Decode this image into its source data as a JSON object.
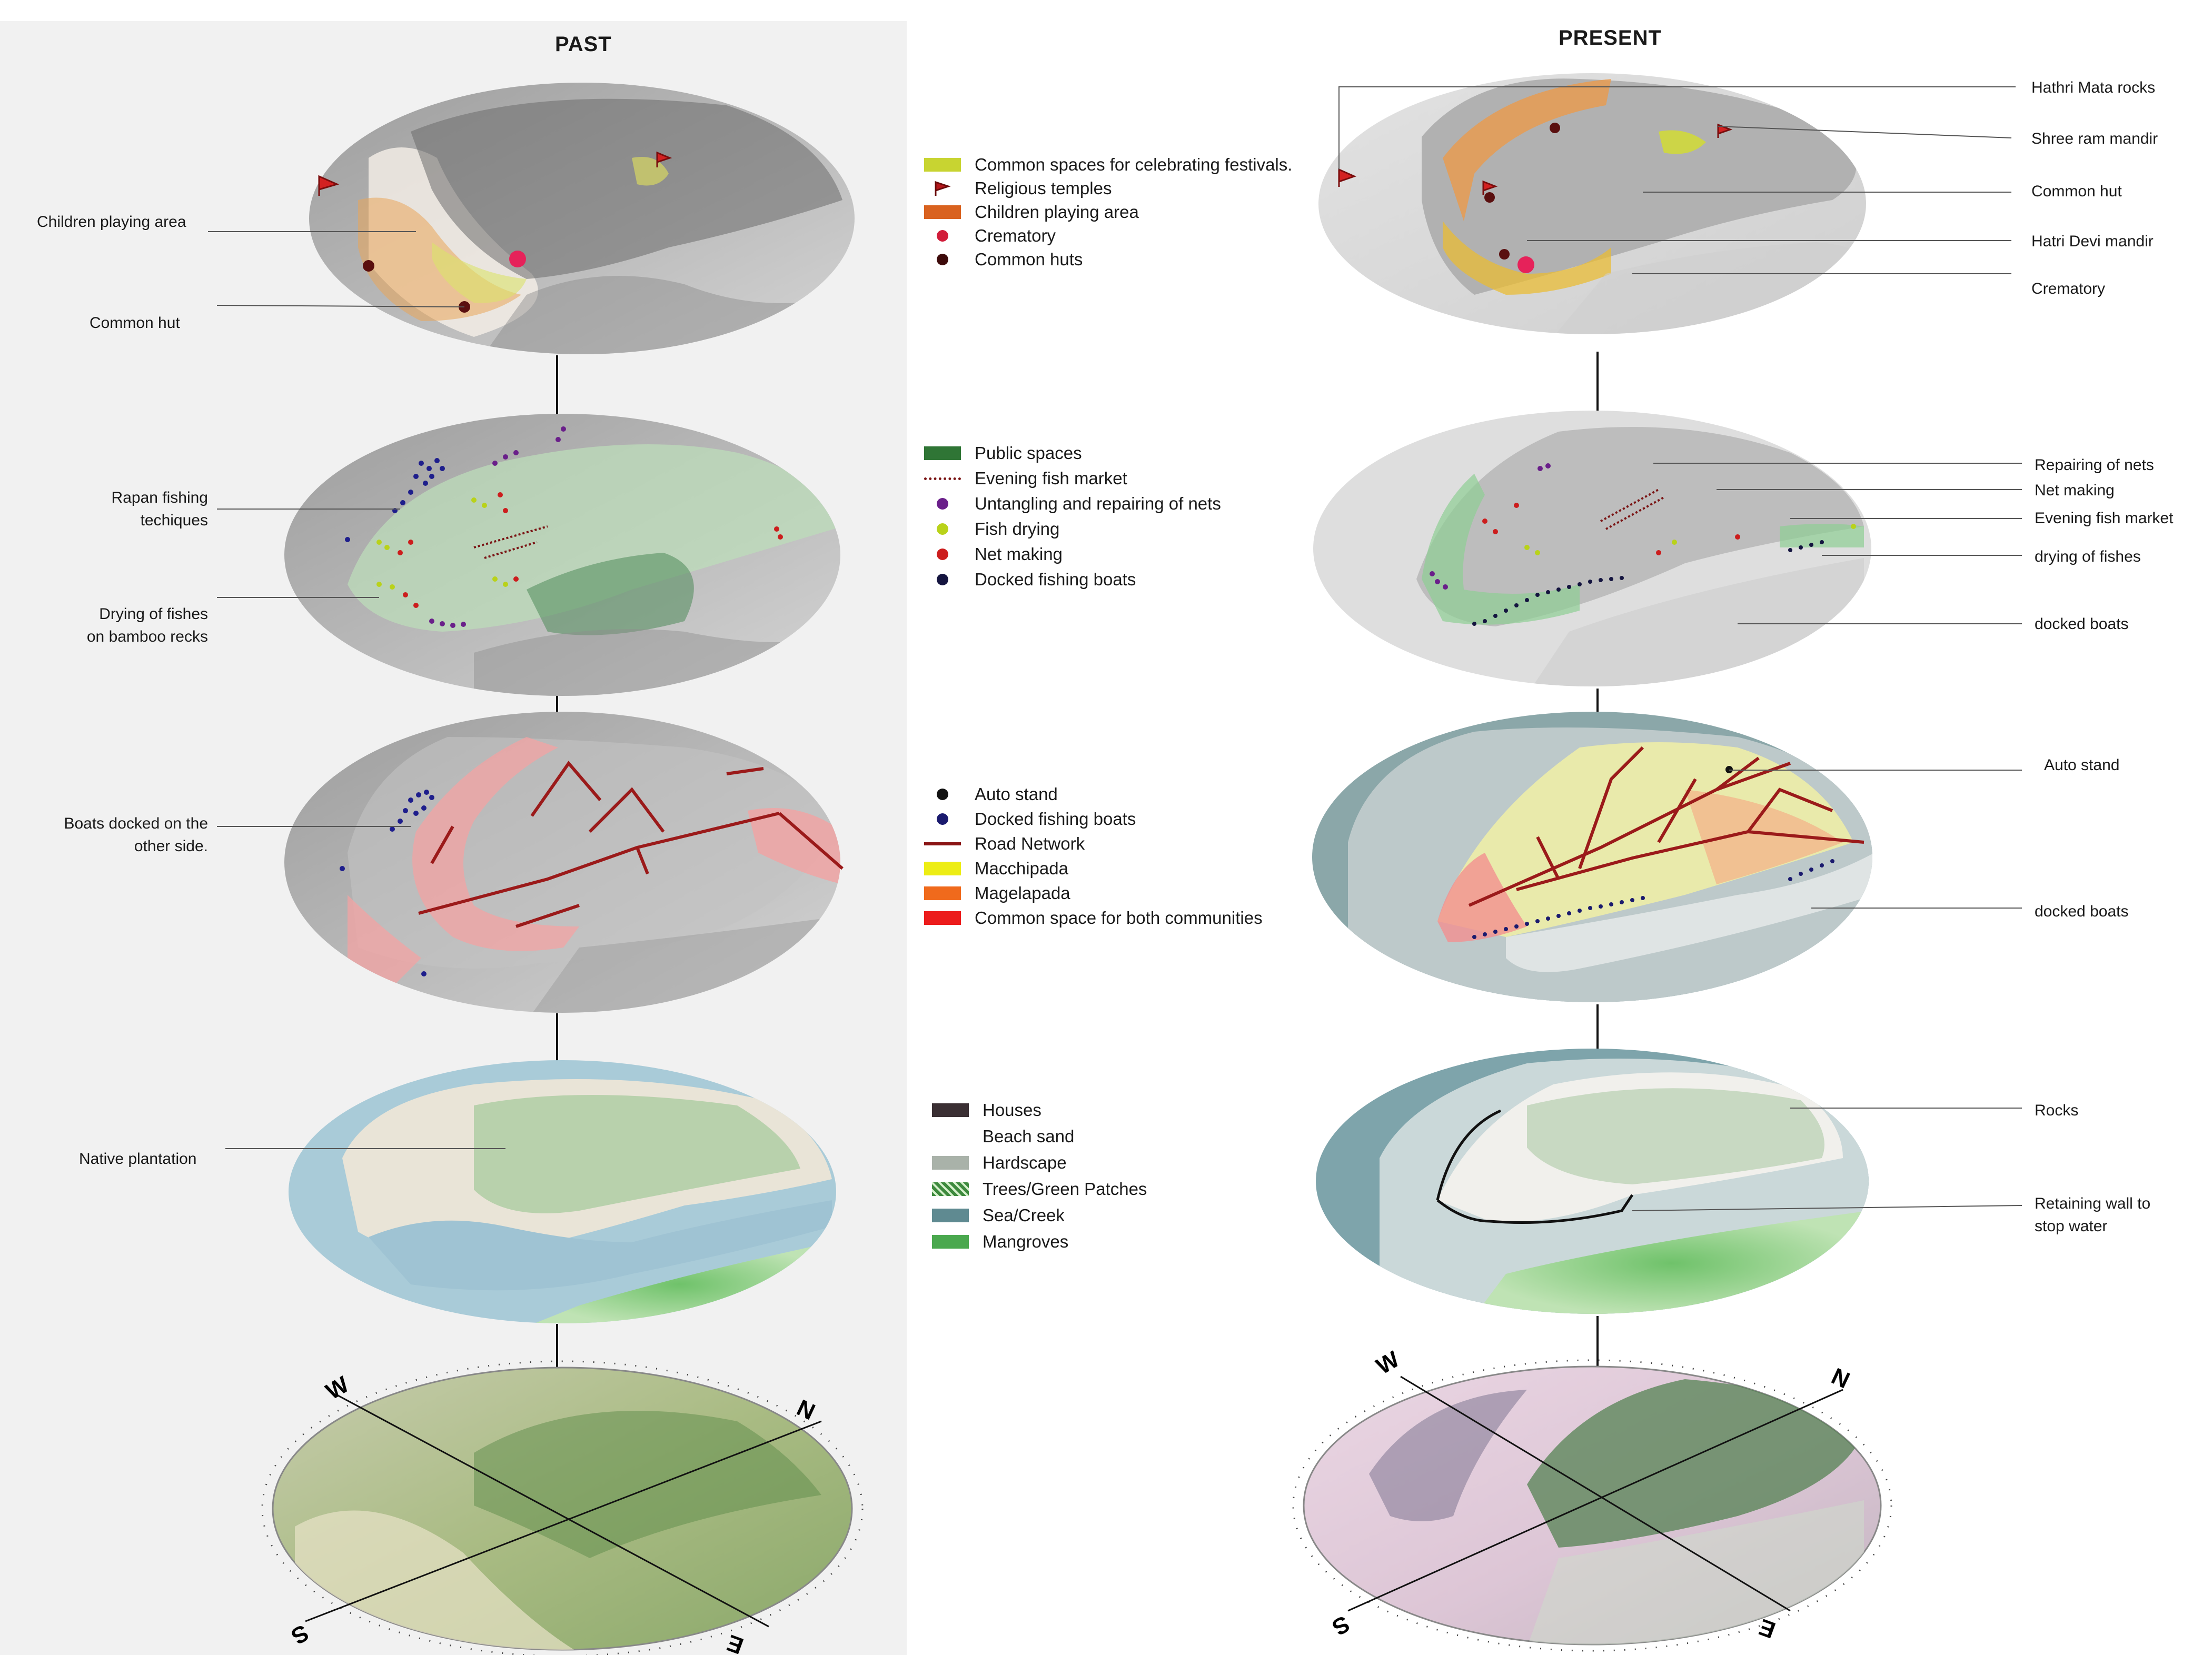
{
  "titles": {
    "past": "PAST",
    "present": "PRESENT"
  },
  "past": {
    "layer1": {
      "children_playing_area": "Children playing area",
      "common_hut": "Common hut"
    },
    "layer2": {
      "rapan_line1": "Rapan fishing",
      "rapan_line2": "techiques",
      "drying_line1": "Drying of fishes",
      "drying_line2": "on bamboo recks"
    },
    "layer3": {
      "boats_line1": "Boats docked on the",
      "boats_line2": "other side."
    },
    "layer4": {
      "native_plantation": "Native plantation"
    }
  },
  "present": {
    "layer1": {
      "hathri_mata_rocks": "Hathri Mata rocks",
      "shree_ram_mandir": "Shree ram mandir",
      "common_hut": "Common hut",
      "hatri_devi_mandir": "Hatri Devi mandir",
      "crematory": "Crematory"
    },
    "layer2": {
      "repairing_of_nets": "Repairing of nets",
      "net_making": "Net making",
      "evening_fish_market": "Evening  fish market",
      "drying_of_fishes": "drying of fishes",
      "docked_boats": "docked boats"
    },
    "layer3": {
      "auto_stand": "Auto stand",
      "docked_boats": "docked boats"
    },
    "layer4": {
      "rocks": "Rocks",
      "retaining_line1": "Retaining wall to",
      "retaining_line2": "stop water"
    }
  },
  "legends": {
    "festivals": [
      {
        "label": "Common spaces for celebrating festivals.",
        "symbol": "rect",
        "color": "#c8d431"
      },
      {
        "label": "Religious temples",
        "symbol": "flag",
        "color": "#b5171b"
      },
      {
        "label": "Children playing area",
        "symbol": "rect",
        "color": "#d9621f"
      },
      {
        "label": "Crematory",
        "symbol": "dot",
        "color": "#d11d3a"
      },
      {
        "label": "Common huts",
        "symbol": "dot",
        "color": "#3d0a0a"
      }
    ],
    "activities": [
      {
        "label": "Public spaces",
        "symbol": "rect",
        "color": "#2f7535"
      },
      {
        "label": "Evening  fish market",
        "symbol": "dotted-line",
        "color": "#7a1414"
      },
      {
        "label": "Untangling and repairing of nets",
        "symbol": "dot",
        "color": "#6a1f8a"
      },
      {
        "label": "Fish drying",
        "symbol": "dot",
        "color": "#b9d21a"
      },
      {
        "label": "Net making",
        "symbol": "dot",
        "color": "#cc1d1d"
      },
      {
        "label": "Docked fishing boats",
        "symbol": "dot",
        "color": "#14143f"
      }
    ],
    "movement": [
      {
        "label": "Auto stand",
        "symbol": "dot",
        "color": "#111111"
      },
      {
        "label": "Docked fishing boats",
        "symbol": "dot",
        "color": "#1a1a6e"
      },
      {
        "label": "Road Network",
        "symbol": "line",
        "color": "#8a1515"
      },
      {
        "label": "Macchipada",
        "symbol": "rect",
        "color": "#eded14"
      },
      {
        "label": "Magelapada",
        "symbol": "rect",
        "color": "#f06a1c"
      },
      {
        "label": "Common space for both communities",
        "symbol": "rect",
        "color": "#ec1c1c"
      }
    ],
    "landcover": [
      {
        "label": "Houses",
        "symbol": "rect",
        "color": "#3a2f33"
      },
      {
        "label": "Beach sand",
        "symbol": "none",
        "color": "#ffffff"
      },
      {
        "label": "Hardscape",
        "symbol": "rect",
        "color": "#a9b2a9"
      },
      {
        "label": "Trees/Green Patches",
        "symbol": "pattern",
        "color": "#3d8a3d"
      },
      {
        "label": "Sea/Creek",
        "symbol": "rect",
        "color": "#5f8a91"
      },
      {
        "label": "Mangroves",
        "symbol": "rect",
        "color": "#4aa84e"
      }
    ]
  },
  "compass": {
    "n": "N",
    "e": "E",
    "s": "S",
    "w": "W"
  }
}
